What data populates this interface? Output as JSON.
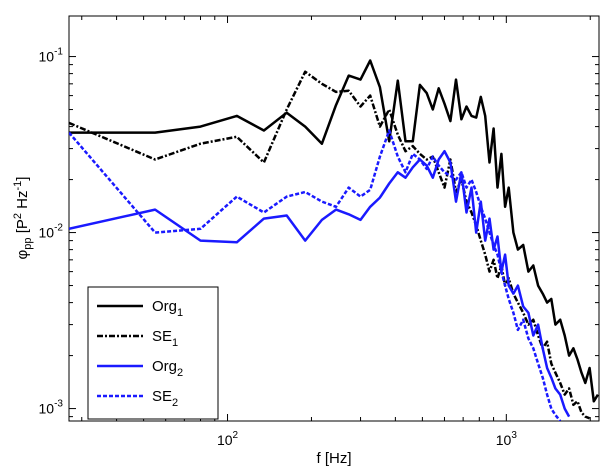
{
  "chart_data": {
    "type": "line",
    "title": "",
    "x_scale": "log",
    "y_scale": "log",
    "xlim": [
      27,
      2150
    ],
    "ylim": [
      0.00085,
      0.17
    ],
    "xlabel": {
      "base": "f [Hz]"
    },
    "ylabel": {
      "phi": "φ",
      "phi_sub": "pp",
      "open": " [P",
      "sup1": "2",
      "mid": " Hz",
      "sup2": "-1",
      "close": "]"
    },
    "x_ticks": [
      {
        "value": 100,
        "base": "10",
        "exp": "2"
      },
      {
        "value": 1000,
        "base": "10",
        "exp": "3"
      }
    ],
    "y_ticks": [
      {
        "value": 0.001,
        "base": "10",
        "exp": "-3"
      },
      {
        "value": 0.01,
        "base": "10",
        "exp": "-2"
      },
      {
        "value": 0.1,
        "base": "10",
        "exp": "-1"
      }
    ],
    "legend": {
      "position": "bottom-left"
    },
    "series": [
      {
        "name": "Org",
        "name_sub": "1",
        "color": "#000000",
        "style": "solid",
        "x": [
          27,
          55,
          80,
          108,
          135,
          163,
          190,
          218,
          245,
          272,
          300,
          325,
          352,
          380,
          408,
          435,
          462,
          490,
          518,
          545,
          572,
          600,
          630,
          660,
          690,
          720,
          750,
          780,
          810,
          840,
          870,
          900,
          930,
          960,
          990,
          1020,
          1060,
          1100,
          1150,
          1200,
          1250,
          1300,
          1350,
          1400,
          1450,
          1500,
          1560,
          1620,
          1680,
          1740,
          1800,
          1860,
          1920,
          1990,
          2060,
          2130
        ],
        "y": [
          0.037,
          0.037,
          0.04,
          0.046,
          0.038,
          0.048,
          0.04,
          0.032,
          0.053,
          0.078,
          0.074,
          0.095,
          0.067,
          0.033,
          0.073,
          0.033,
          0.033,
          0.069,
          0.062,
          0.05,
          0.066,
          0.054,
          0.043,
          0.074,
          0.044,
          0.052,
          0.046,
          0.045,
          0.059,
          0.046,
          0.025,
          0.039,
          0.018,
          0.028,
          0.014,
          0.018,
          0.01,
          0.008,
          0.0085,
          0.006,
          0.0065,
          0.005,
          0.0045,
          0.004,
          0.0042,
          0.003,
          0.0032,
          0.0026,
          0.002,
          0.0022,
          0.0019,
          0.0016,
          0.0014,
          0.0017,
          0.0011,
          0.0012
        ]
      },
      {
        "name": "SE",
        "name_sub": "1",
        "color": "#000000",
        "style": "dashdot",
        "x": [
          27,
          55,
          80,
          108,
          135,
          163,
          190,
          218,
          245,
          272,
          300,
          325,
          352,
          380,
          408,
          435,
          462,
          490,
          518,
          545,
          572,
          600,
          630,
          660,
          690,
          720,
          750,
          780,
          810,
          840,
          870,
          900,
          930,
          960,
          990,
          1020,
          1060,
          1100,
          1150,
          1200,
          1250,
          1300,
          1350,
          1400,
          1450,
          1500,
          1560,
          1620,
          1680,
          1740,
          1800,
          1860,
          1920,
          1990
        ],
        "y": [
          0.042,
          0.026,
          0.032,
          0.035,
          0.025,
          0.05,
          0.082,
          0.07,
          0.063,
          0.064,
          0.052,
          0.06,
          0.04,
          0.05,
          0.036,
          0.029,
          0.031,
          0.028,
          0.026,
          0.027,
          0.022,
          0.018,
          0.026,
          0.017,
          0.02,
          0.015,
          0.013,
          0.011,
          0.009,
          0.0075,
          0.006,
          0.007,
          0.0055,
          0.0065,
          0.005,
          0.0055,
          0.0045,
          0.004,
          0.0035,
          0.003,
          0.0032,
          0.0026,
          0.0022,
          0.0024,
          0.0018,
          0.0016,
          0.0014,
          0.0012,
          0.0013,
          0.00105,
          0.0011,
          0.00095,
          0.0009,
          0.00088
        ]
      },
      {
        "name": "Org",
        "name_sub": "2",
        "color": "#1a1aff",
        "style": "solid",
        "x": [
          27,
          55,
          80,
          108,
          135,
          163,
          190,
          218,
          245,
          272,
          300,
          325,
          352,
          380,
          408,
          435,
          462,
          490,
          518,
          545,
          572,
          600,
          630,
          660,
          690,
          720,
          750,
          780,
          810,
          840,
          870,
          900,
          930,
          960,
          990,
          1020,
          1060,
          1100,
          1150,
          1200,
          1250,
          1300,
          1350,
          1400,
          1450,
          1500,
          1560,
          1620,
          1680
        ],
        "y": [
          0.0105,
          0.0135,
          0.009,
          0.0088,
          0.012,
          0.0125,
          0.009,
          0.0118,
          0.0135,
          0.0127,
          0.0118,
          0.014,
          0.0158,
          0.019,
          0.022,
          0.0205,
          0.0235,
          0.026,
          0.024,
          0.0205,
          0.026,
          0.029,
          0.025,
          0.015,
          0.022,
          0.013,
          0.018,
          0.01,
          0.015,
          0.009,
          0.012,
          0.008,
          0.0095,
          0.006,
          0.0075,
          0.005,
          0.0045,
          0.005,
          0.0038,
          0.0035,
          0.0026,
          0.003,
          0.0022,
          0.0017,
          0.0015,
          0.0013,
          0.0012,
          0.001,
          0.0009
        ]
      },
      {
        "name": "SE",
        "name_sub": "2",
        "color": "#1a1aff",
        "style": "dotted",
        "x": [
          27,
          55,
          80,
          108,
          135,
          163,
          190,
          218,
          245,
          272,
          300,
          325,
          352,
          380,
          408,
          435,
          462,
          490,
          518,
          545,
          572,
          600,
          630,
          660,
          690,
          720,
          750,
          780,
          810,
          840,
          870,
          900,
          930,
          960,
          990,
          1020,
          1060,
          1100,
          1150,
          1200,
          1250,
          1300,
          1350,
          1400,
          1450,
          1500,
          1560
        ],
        "y": [
          0.037,
          0.01,
          0.0105,
          0.016,
          0.013,
          0.016,
          0.017,
          0.015,
          0.014,
          0.018,
          0.016,
          0.0175,
          0.027,
          0.038,
          0.027,
          0.022,
          0.028,
          0.026,
          0.023,
          0.027,
          0.024,
          0.022,
          0.021,
          0.02,
          0.022,
          0.018,
          0.02,
          0.017,
          0.014,
          0.012,
          0.01,
          0.0085,
          0.0075,
          0.006,
          0.005,
          0.0042,
          0.0035,
          0.0028,
          0.0032,
          0.0025,
          0.0022,
          0.0018,
          0.0015,
          0.0012,
          0.001,
          0.00092,
          0.00085
        ]
      }
    ]
  }
}
